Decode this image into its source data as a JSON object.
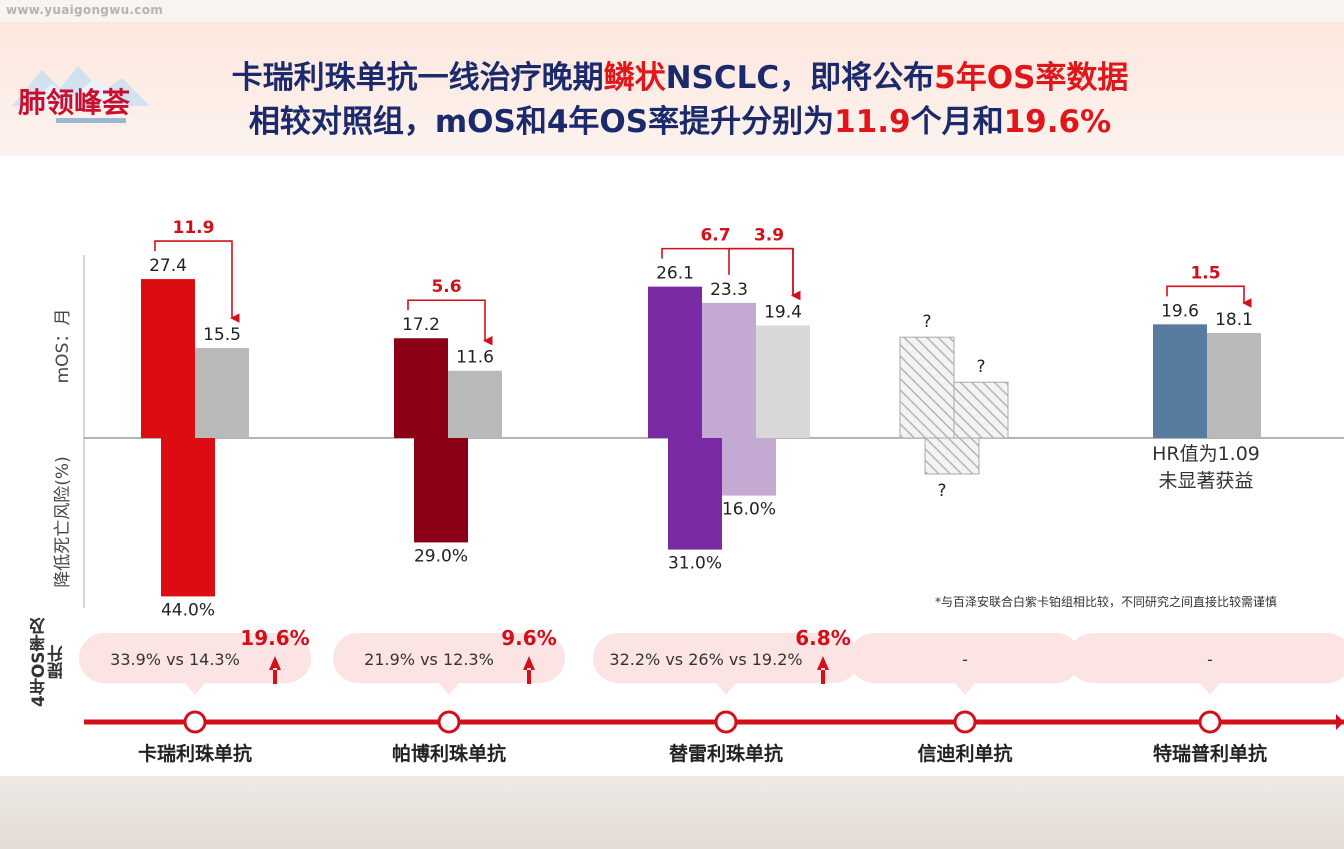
{
  "watermark": "www.yuaigongwu.com",
  "logo_text": "肺领峰荟",
  "title": {
    "line1": [
      {
        "text": "卡瑞利珠单抗一线治疗晚期",
        "hl": false
      },
      {
        "text": "鳞状",
        "hl": true
      },
      {
        "text": "NSCLC，即将公布",
        "hl": false
      },
      {
        "text": "5年OS率数据",
        "hl": true
      }
    ],
    "line2": [
      {
        "text": "相较对照组，mOS和4年OS率提升分别为",
        "hl": false
      },
      {
        "text": "11.9",
        "hl": true
      },
      {
        "text": "个月和",
        "hl": false
      },
      {
        "text": "19.6%",
        "hl": true
      }
    ]
  },
  "colors": {
    "red": "#dd0b12",
    "dark_red": "#8b0017",
    "purple": "#7a2ba3",
    "light_purple": "#c4a9d3",
    "steel_blue": "#577c9f",
    "gray": "#b9b9b9",
    "light_gray": "#d8d8d8",
    "accent": "#d3101a"
  },
  "chart_data": {
    "type": "bar",
    "ylabel_top": "mOS：月",
    "ylabel_bottom": "降低死亡风险(%)",
    "row_label": "4年OS率及提升",
    "footnote": "*与百泽安联合白紫卡铂组相比较，不同研究之间直接比较需谨慎",
    "categories": [
      "卡瑞利珠单抗",
      "帕博利珠单抗",
      "替雷利珠单抗",
      "信迪利单抗",
      "特瑞普利单抗"
    ],
    "groups": [
      {
        "mos": [
          {
            "value": 27.4,
            "label": "27.4",
            "color": "red"
          },
          {
            "value": 15.5,
            "label": "15.5",
            "color": "gray"
          }
        ],
        "diffs": [
          {
            "label": "11.9",
            "from": 0,
            "to": 1
          }
        ],
        "risk": {
          "value": 44.0,
          "label": "44.0%",
          "color": "red"
        },
        "os4": {
          "text": "33.9% vs 14.3%",
          "lift": "19.6%"
        }
      },
      {
        "mos": [
          {
            "value": 17.2,
            "label": "17.2",
            "color": "dark_red"
          },
          {
            "value": 11.6,
            "label": "11.6",
            "color": "gray"
          }
        ],
        "diffs": [
          {
            "label": "5.6",
            "from": 0,
            "to": 1
          }
        ],
        "risk": {
          "value": 29.0,
          "label": "29.0%",
          "color": "dark_red"
        },
        "os4": {
          "text": "21.9% vs 12.3%",
          "lift": "9.6%"
        }
      },
      {
        "mos": [
          {
            "value": 26.1,
            "label": "26.1",
            "color": "purple"
          },
          {
            "value": 23.3,
            "label": "23.3",
            "color": "light_purple"
          },
          {
            "value": 19.4,
            "label": "19.4",
            "color": "light_gray"
          }
        ],
        "diffs": [
          {
            "label": "6.7",
            "from": 0,
            "to": 2
          },
          {
            "label": "3.9",
            "from": 1,
            "to": 2
          }
        ],
        "risks": [
          {
            "value": 31.0,
            "label": "31.0%",
            "color": "purple"
          },
          {
            "value": 16.0,
            "label": "16.0%",
            "color": "light_purple"
          }
        ],
        "os4": {
          "text": "32.2% vs 26% vs 19.2%",
          "lift": "6.8%"
        }
      },
      {
        "unknown": true,
        "mos_rel": [
          0.56,
          0.31
        ],
        "risk_rel": 0.24,
        "mos_labels": [
          "?",
          "?"
        ],
        "risk_label": "?",
        "os4": {
          "text": "-",
          "lift": ""
        }
      },
      {
        "mos": [
          {
            "value": 19.6,
            "label": "19.6",
            "color": "steel_blue"
          },
          {
            "value": 18.1,
            "label": "18.1",
            "color": "gray"
          }
        ],
        "diffs": [
          {
            "label": "1.5",
            "from": 0,
            "to": 1
          }
        ],
        "hr_note": [
          "HR值为1.09",
          "未显著获益"
        ],
        "os4": {
          "text": "-",
          "lift": ""
        }
      }
    ]
  }
}
